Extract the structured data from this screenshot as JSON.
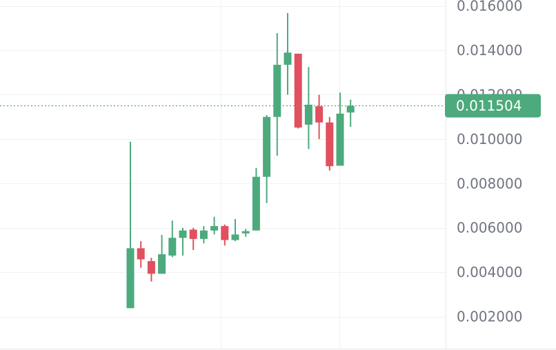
{
  "colors": {
    "up": "#4caa7c",
    "down": "#e0505e",
    "grid": "#f0f1f5",
    "axis_text": "#6f7480",
    "price_line": "#4caa7c",
    "price_tag_bg": "#4caa7c"
  },
  "current_price": {
    "value": 0.011504,
    "label": "0.011504"
  },
  "chart_data": {
    "type": "candlestick",
    "title": "",
    "xlabel": "",
    "ylabel": "",
    "ylim": [
      0.0012,
      0.0167
    ],
    "y_ticks": [
      {
        "value": 0.016,
        "label": "0.016000"
      },
      {
        "value": 0.014,
        "label": "0.014000"
      },
      {
        "value": 0.012,
        "label": "0.012000"
      },
      {
        "value": 0.01,
        "label": "0.010000"
      },
      {
        "value": 0.008,
        "label": "0.008000"
      },
      {
        "value": 0.006,
        "label": "0.006000"
      },
      {
        "value": 0.004,
        "label": "0.004000"
      },
      {
        "value": 0.002,
        "label": "0.002000"
      }
    ],
    "grid": true,
    "price_axis": "right",
    "candles": [
      {
        "open": 0.00238,
        "high": 0.00988,
        "low": 0.00238,
        "close": 0.00508
      },
      {
        "open": 0.00508,
        "high": 0.0054,
        "low": 0.0042,
        "close": 0.00458
      },
      {
        "open": 0.0045,
        "high": 0.00465,
        "low": 0.00358,
        "close": 0.00393
      },
      {
        "open": 0.00393,
        "high": 0.00568,
        "low": 0.00393,
        "close": 0.00481
      },
      {
        "open": 0.00475,
        "high": 0.00633,
        "low": 0.00468,
        "close": 0.00555
      },
      {
        "open": 0.00555,
        "high": 0.006,
        "low": 0.00475,
        "close": 0.00588
      },
      {
        "open": 0.00592,
        "high": 0.006,
        "low": 0.005,
        "close": 0.0055
      },
      {
        "open": 0.0055,
        "high": 0.00608,
        "low": 0.0053,
        "close": 0.00588
      },
      {
        "open": 0.00588,
        "high": 0.0065,
        "low": 0.0057,
        "close": 0.00608
      },
      {
        "open": 0.00608,
        "high": 0.00615,
        "low": 0.0052,
        "close": 0.00545
      },
      {
        "open": 0.00545,
        "high": 0.0064,
        "low": 0.0054,
        "close": 0.0057
      },
      {
        "open": 0.00575,
        "high": 0.00595,
        "low": 0.0056,
        "close": 0.00585
      },
      {
        "open": 0.00588,
        "high": 0.0087,
        "low": 0.00588,
        "close": 0.0083
      },
      {
        "open": 0.0083,
        "high": 0.01108,
        "low": 0.00712,
        "close": 0.011
      },
      {
        "open": 0.011,
        "high": 0.01478,
        "low": 0.00925,
        "close": 0.01335
      },
      {
        "open": 0.01335,
        "high": 0.01568,
        "low": 0.012,
        "close": 0.0139
      },
      {
        "open": 0.01385,
        "high": 0.01385,
        "low": 0.01048,
        "close": 0.01052
      },
      {
        "open": 0.01065,
        "high": 0.01325,
        "low": 0.00955,
        "close": 0.01155
      },
      {
        "open": 0.01148,
        "high": 0.012,
        "low": 0.01,
        "close": 0.01075
      },
      {
        "open": 0.01075,
        "high": 0.011,
        "low": 0.00858,
        "close": 0.00878
      },
      {
        "open": 0.0088,
        "high": 0.0121,
        "low": 0.0088,
        "close": 0.01115
      },
      {
        "open": 0.0112,
        "high": 0.01178,
        "low": 0.01055,
        "close": 0.0115
      }
    ]
  }
}
